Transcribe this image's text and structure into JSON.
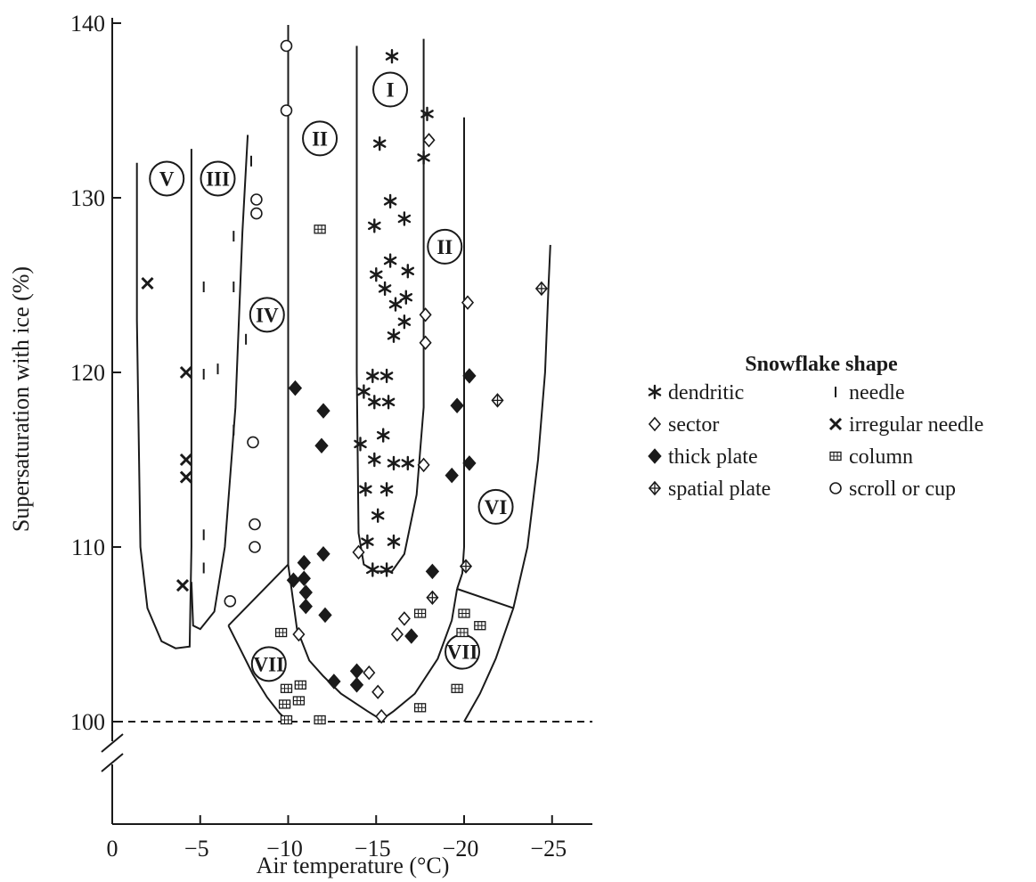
{
  "chart_data": {
    "type": "scatter",
    "xlabel": "Air temperature (°C)",
    "ylabel": "Supersaturation with ice (%)",
    "xlim": [
      0,
      -27
    ],
    "ylim": [
      95,
      140
    ],
    "x_ticks": [
      {
        "value": 0,
        "label": "0"
      },
      {
        "value": -5,
        "label": "−5"
      },
      {
        "value": -10,
        "label": "−10"
      },
      {
        "value": -15,
        "label": "−15"
      },
      {
        "value": -20,
        "label": "−20"
      },
      {
        "value": -25,
        "label": "−25"
      }
    ],
    "y_ticks": [
      {
        "value": 100,
        "label": "100"
      },
      {
        "value": 110,
        "label": "110"
      },
      {
        "value": 120,
        "label": "120"
      },
      {
        "value": 130,
        "label": "130"
      },
      {
        "value": 140,
        "label": "140"
      }
    ],
    "y_axis_break": true,
    "reference_line": {
      "y": 100,
      "style": "dashed"
    },
    "legend": {
      "title": "Snowflake shape",
      "placement": "right",
      "entries": [
        {
          "series": "dendritic",
          "label": "dendritic"
        },
        {
          "series": "needle",
          "label": "needle"
        },
        {
          "series": "sector",
          "label": "sector"
        },
        {
          "series": "irregular_needle",
          "label": "irregular needle"
        },
        {
          "series": "thick_plate",
          "label": "thick plate"
        },
        {
          "series": "column",
          "label": "column"
        },
        {
          "series": "spatial_plate",
          "label": "spatial plate"
        },
        {
          "series": "scroll_cup",
          "label": "scroll or cup"
        }
      ]
    },
    "regions": [
      {
        "label": "I",
        "x": -15.8,
        "y": 136.2
      },
      {
        "label": "II",
        "x": -11.8,
        "y": 133.4
      },
      {
        "label": "II",
        "x": -18.9,
        "y": 127.2
      },
      {
        "label": "III",
        "x": -6.0,
        "y": 131.1
      },
      {
        "label": "IV",
        "x": -8.8,
        "y": 123.3
      },
      {
        "label": "V",
        "x": -3.1,
        "y": 131.1
      },
      {
        "label": "VI",
        "x": -21.8,
        "y": 112.3
      },
      {
        "label": "VII",
        "x": -8.9,
        "y": 103.3
      },
      {
        "label": "VII",
        "x": -19.9,
        "y": 104.0
      }
    ],
    "boundaries": [
      [
        [
          -1.4,
          132
        ],
        [
          -1.4,
          123
        ],
        [
          -1.6,
          110
        ],
        [
          -2.0,
          106.5
        ],
        [
          -2.8,
          104.6
        ],
        [
          -3.6,
          104.2
        ],
        [
          -4.4,
          104.3
        ],
        [
          -4.5,
          110
        ],
        [
          -4.5,
          120
        ],
        [
          -4.5,
          132.8
        ]
      ],
      [
        [
          -7.7,
          133.6
        ],
        [
          -7.4,
          128
        ],
        [
          -7.0,
          118
        ],
        [
          -6.4,
          110
        ],
        [
          -5.8,
          106.3
        ],
        [
          -5.0,
          105.3
        ],
        [
          -4.6,
          105.5
        ],
        [
          -4.5,
          108
        ]
      ],
      [
        [
          -6.6,
          105.5
        ],
        [
          -10.0,
          109.0
        ]
      ],
      [
        [
          -6.6,
          105.5
        ],
        [
          -7.3,
          104.1
        ],
        [
          -8.0,
          102.7
        ],
        [
          -8.8,
          101.4
        ],
        [
          -9.5,
          100.5
        ],
        [
          -10.0,
          100.0
        ]
      ],
      [
        [
          -10.0,
          139.9
        ],
        [
          -10.0,
          109.0
        ]
      ],
      [
        [
          -10.0,
          109.0
        ],
        [
          -10.5,
          105.3
        ],
        [
          -11.2,
          103.5
        ],
        [
          -12.0,
          102.6
        ],
        [
          -13.0,
          101.6
        ],
        [
          -14.5,
          100.6
        ],
        [
          -15.3,
          100.1
        ]
      ],
      [
        [
          -15.3,
          100.1
        ],
        [
          -16.0,
          100.6
        ],
        [
          -17.2,
          101.6
        ],
        [
          -18.5,
          103.6
        ],
        [
          -19.3,
          105.8
        ],
        [
          -19.6,
          107.6
        ]
      ],
      [
        [
          -13.9,
          138.7
        ],
        [
          -13.9,
          120
        ],
        [
          -14.0,
          110.8
        ],
        [
          -14.3,
          109.0
        ],
        [
          -15.0,
          108.6
        ],
        [
          -15.9,
          108.6
        ],
        [
          -16.6,
          109.6
        ],
        [
          -17.3,
          113
        ],
        [
          -17.7,
          118
        ],
        [
          -17.7,
          139.1
        ]
      ],
      [
        [
          -20.0,
          134.6
        ],
        [
          -20.0,
          110
        ],
        [
          -19.9,
          108.5
        ],
        [
          -19.6,
          107.6
        ]
      ],
      [
        [
          -19.6,
          107.6
        ],
        [
          -22.8,
          106.5
        ]
      ],
      [
        [
          -20.0,
          100.0
        ],
        [
          -20.9,
          101.6
        ],
        [
          -21.8,
          103.6
        ],
        [
          -22.8,
          106.5
        ],
        [
          -23.6,
          110
        ],
        [
          -24.2,
          115
        ],
        [
          -24.6,
          120
        ],
        [
          -24.8,
          125
        ],
        [
          -24.9,
          127.3
        ]
      ]
    ],
    "series": [
      {
        "name": "dendritic",
        "marker": "asterisk",
        "points": [
          [
            -15.9,
            138.1
          ],
          [
            -17.9,
            134.8
          ],
          [
            -15.2,
            133.1
          ],
          [
            -17.7,
            132.3
          ],
          [
            -15.8,
            129.8
          ],
          [
            -16.6,
            128.8
          ],
          [
            -14.9,
            128.4
          ],
          [
            -15.8,
            126.4
          ],
          [
            -15.0,
            125.6
          ],
          [
            -16.8,
            125.8
          ],
          [
            -15.5,
            124.8
          ],
          [
            -16.7,
            124.3
          ],
          [
            -16.1,
            123.9
          ],
          [
            -16.6,
            122.9
          ],
          [
            -16.0,
            122.1
          ],
          [
            -14.8,
            119.8
          ],
          [
            -15.6,
            119.8
          ],
          [
            -14.3,
            118.9
          ],
          [
            -14.9,
            118.3
          ],
          [
            -15.7,
            118.3
          ],
          [
            -15.4,
            116.4
          ],
          [
            -14.1,
            115.9
          ],
          [
            -14.9,
            115.0
          ],
          [
            -16.0,
            114.8
          ],
          [
            -16.8,
            114.8
          ],
          [
            -14.4,
            113.3
          ],
          [
            -15.6,
            113.3
          ],
          [
            -15.1,
            111.8
          ],
          [
            -14.5,
            110.3
          ],
          [
            -16.0,
            110.3
          ],
          [
            -14.8,
            108.7
          ],
          [
            -15.6,
            108.7
          ]
        ]
      },
      {
        "name": "sector",
        "marker": "diamond-open",
        "points": [
          [
            -18.0,
            133.3
          ],
          [
            -17.8,
            123.3
          ],
          [
            -17.8,
            121.7
          ],
          [
            -17.7,
            114.7
          ],
          [
            -14.0,
            109.7
          ],
          [
            -20.2,
            124.0
          ],
          [
            -10.6,
            105.0
          ],
          [
            -16.6,
            105.9
          ],
          [
            -16.2,
            105.0
          ],
          [
            -14.6,
            102.8
          ],
          [
            -15.1,
            101.7
          ],
          [
            -15.3,
            100.3
          ]
        ]
      },
      {
        "name": "thick_plate",
        "marker": "diamond-filled",
        "points": [
          [
            -10.4,
            119.1
          ],
          [
            -12.0,
            117.8
          ],
          [
            -11.9,
            115.8
          ],
          [
            -10.3,
            108.1
          ],
          [
            -10.9,
            109.1
          ],
          [
            -10.9,
            108.2
          ],
          [
            -11.0,
            107.4
          ],
          [
            -11.0,
            106.6
          ],
          [
            -12.0,
            109.6
          ],
          [
            -12.1,
            106.1
          ],
          [
            -12.6,
            102.3
          ],
          [
            -13.9,
            102.9
          ],
          [
            -13.9,
            102.1
          ],
          [
            -17.0,
            104.9
          ],
          [
            -18.2,
            108.6
          ],
          [
            -19.3,
            114.1
          ],
          [
            -19.6,
            118.1
          ],
          [
            -20.3,
            119.8
          ],
          [
            -20.3,
            114.8
          ]
        ]
      },
      {
        "name": "spatial_plate",
        "marker": "diamond-cross",
        "points": [
          [
            -24.4,
            124.8
          ],
          [
            -21.9,
            118.4
          ],
          [
            -20.1,
            108.9
          ],
          [
            -18.2,
            107.1
          ]
        ]
      },
      {
        "name": "needle",
        "marker": "bar",
        "points": [
          [
            -7.9,
            132.1
          ],
          [
            -6.9,
            127.8
          ],
          [
            -5.2,
            124.9
          ],
          [
            -6.9,
            124.9
          ],
          [
            -7.6,
            121.9
          ],
          [
            -5.2,
            119.9
          ],
          [
            -6.0,
            120.2
          ],
          [
            -6.9,
            116.7
          ],
          [
            -5.2,
            110.7
          ],
          [
            -5.2,
            108.8
          ]
        ]
      },
      {
        "name": "irregular_needle",
        "marker": "x",
        "points": [
          [
            -2.0,
            125.1
          ],
          [
            -4.2,
            120.0
          ],
          [
            -4.2,
            115.0
          ],
          [
            -4.2,
            114.0
          ],
          [
            -4.0,
            107.8
          ]
        ]
      },
      {
        "name": "column",
        "marker": "square-grid",
        "points": [
          [
            -11.8,
            128.2
          ],
          [
            -9.6,
            105.1
          ],
          [
            -9.9,
            101.9
          ],
          [
            -10.7,
            102.1
          ],
          [
            -9.8,
            101.0
          ],
          [
            -10.6,
            101.2
          ],
          [
            -9.9,
            100.1
          ],
          [
            -11.8,
            100.1
          ],
          [
            -17.5,
            106.2
          ],
          [
            -17.5,
            100.8
          ],
          [
            -20.0,
            106.2
          ],
          [
            -20.9,
            105.5
          ],
          [
            -19.9,
            105.1
          ],
          [
            -19.6,
            101.9
          ]
        ]
      },
      {
        "name": "scroll_cup",
        "marker": "circle-open",
        "points": [
          [
            -9.9,
            138.7
          ],
          [
            -9.9,
            135.0
          ],
          [
            -8.2,
            129.9
          ],
          [
            -8.2,
            129.1
          ],
          [
            -8.0,
            116.0
          ],
          [
            -8.1,
            111.3
          ],
          [
            -8.1,
            110.0
          ],
          [
            -6.7,
            106.9
          ]
        ]
      }
    ]
  }
}
